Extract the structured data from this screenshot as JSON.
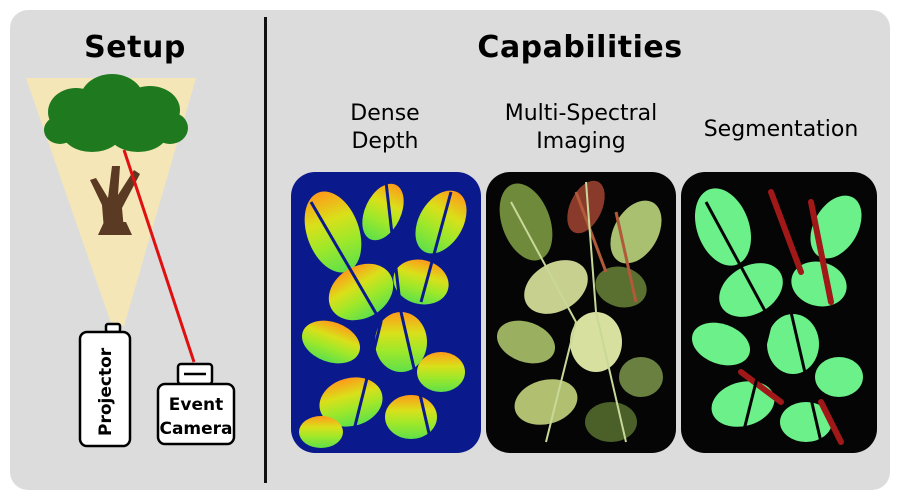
{
  "setup": {
    "title": "Setup",
    "projector_label": "Projector",
    "camera_label_line1": "Event",
    "camera_label_line2": "Camera"
  },
  "capabilities": {
    "title": "Capabilities",
    "items": [
      {
        "label": "Dense\nDepth"
      },
      {
        "label": "Multi-Spectral\nImaging"
      },
      {
        "label": "Segmentation"
      }
    ]
  },
  "colors": {
    "panel_bg": "#dcdcdc",
    "beam": "#f5e6b8",
    "laser": "#e01010",
    "depth_bg": "#0a1a8c",
    "segment_leaf": "#6cf08a",
    "segment_stem": "#a01818"
  }
}
